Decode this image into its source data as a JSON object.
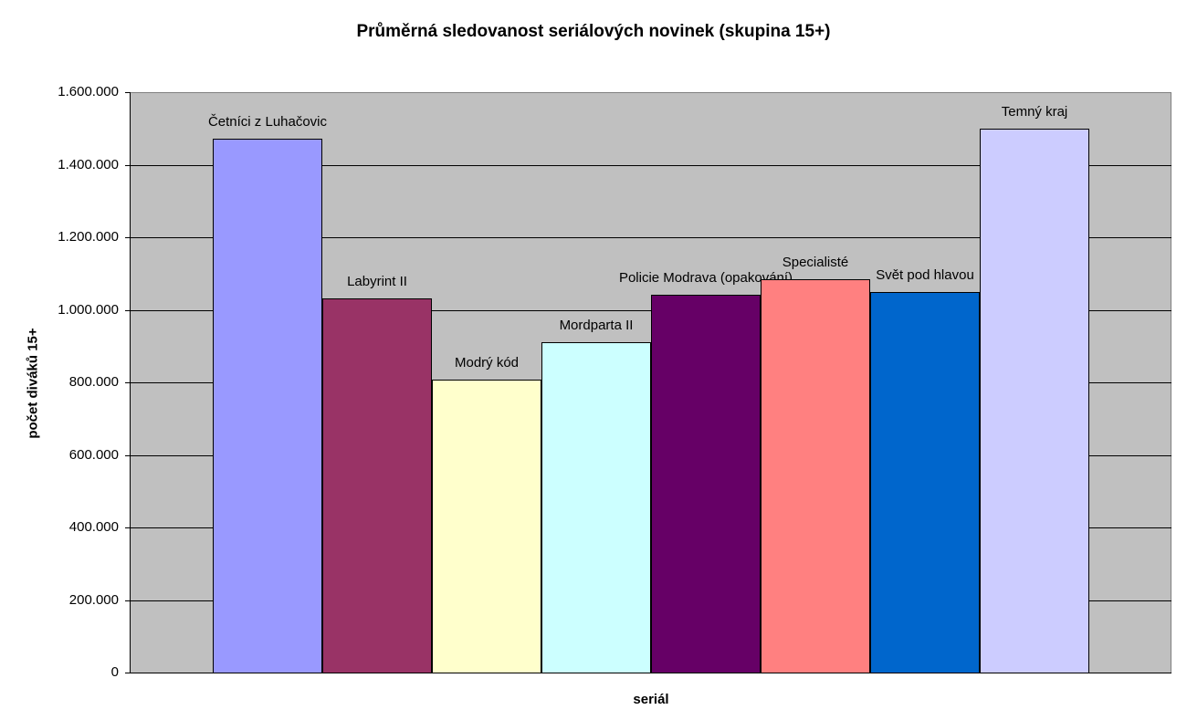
{
  "chart_data": {
    "type": "bar",
    "title": "Průměrná sledovanost seriálových novinek (skupina 15+)",
    "xlabel": "seriál",
    "ylabel": "počet diváků 15+",
    "ylim": [
      0,
      1600000
    ],
    "yticks": [
      "0",
      "200.000",
      "400.000",
      "600.000",
      "800.000",
      "1.000.000",
      "1.200.000",
      "1.400.000",
      "1.600.000"
    ],
    "grid": true,
    "legend": "none",
    "categories": [
      "Četníci z Luhačovic",
      "Labyrint II",
      "Modrý kód",
      "Mordparta II",
      "Policie Modrava (opakování)",
      "Specialisté",
      "Svět pod hlavou",
      "Temný kraj"
    ],
    "values": [
      1472000,
      1031000,
      807000,
      911000,
      1042000,
      1084000,
      1049000,
      1500000
    ],
    "colors": [
      "#9999ff",
      "#993366",
      "#ffffcc",
      "#ccffff",
      "#660066",
      "#ff8080",
      "#0066cc",
      "#ccccff"
    ]
  }
}
